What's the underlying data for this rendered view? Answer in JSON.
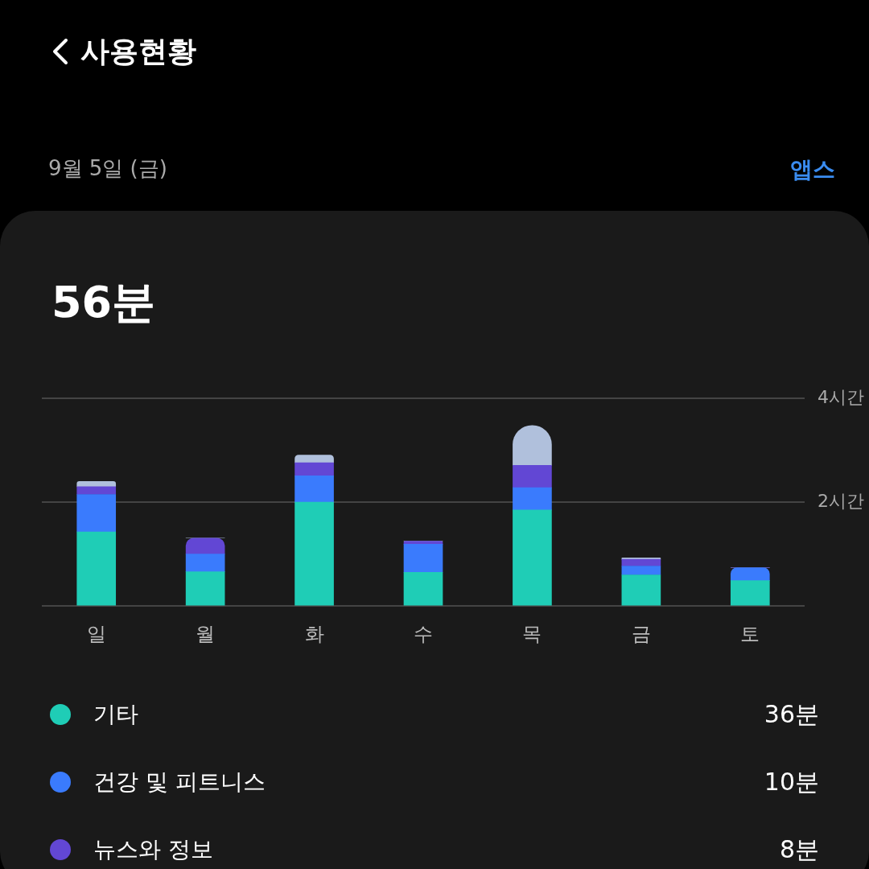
{
  "chart_data": {
    "type": "bar",
    "stacked": true,
    "title": "사용현황",
    "subtitle": "9월 5일 (금)",
    "annotations": [
      "앱스",
      "56분",
      "36분",
      "10분",
      "8분"
    ],
    "categories": [
      "일",
      "월",
      "화",
      "수",
      "목",
      "금",
      "토"
    ],
    "series": [
      {
        "name": "기타",
        "color": "#1fcdb6",
        "values": [
          1.43,
          0.66,
          2.0,
          0.65,
          1.85,
          0.6,
          0.49
        ]
      },
      {
        "name": "건강 및 피트니스",
        "color": "#3a7bfd",
        "values": [
          0.72,
          0.34,
          0.51,
          0.54,
          0.43,
          0.17,
          0.25
        ]
      },
      {
        "name": "뉴스와 정보",
        "color": "#6247d4",
        "values": [
          0.15,
          0.31,
          0.25,
          0.06,
          0.43,
          0.13,
          0
        ]
      },
      {
        "color": "#b0c0dc",
        "values": [
          0.1,
          0,
          0.15,
          0,
          0.77,
          0.03,
          0
        ]
      }
    ],
    "ylim": [
      0,
      4
    ],
    "yticks": [
      {
        "value": 0,
        "label": null
      },
      {
        "value": 2,
        "label": "2시간"
      },
      {
        "value": 4,
        "label": "4시간"
      }
    ],
    "grid": "y",
    "legend": "bottom"
  }
}
